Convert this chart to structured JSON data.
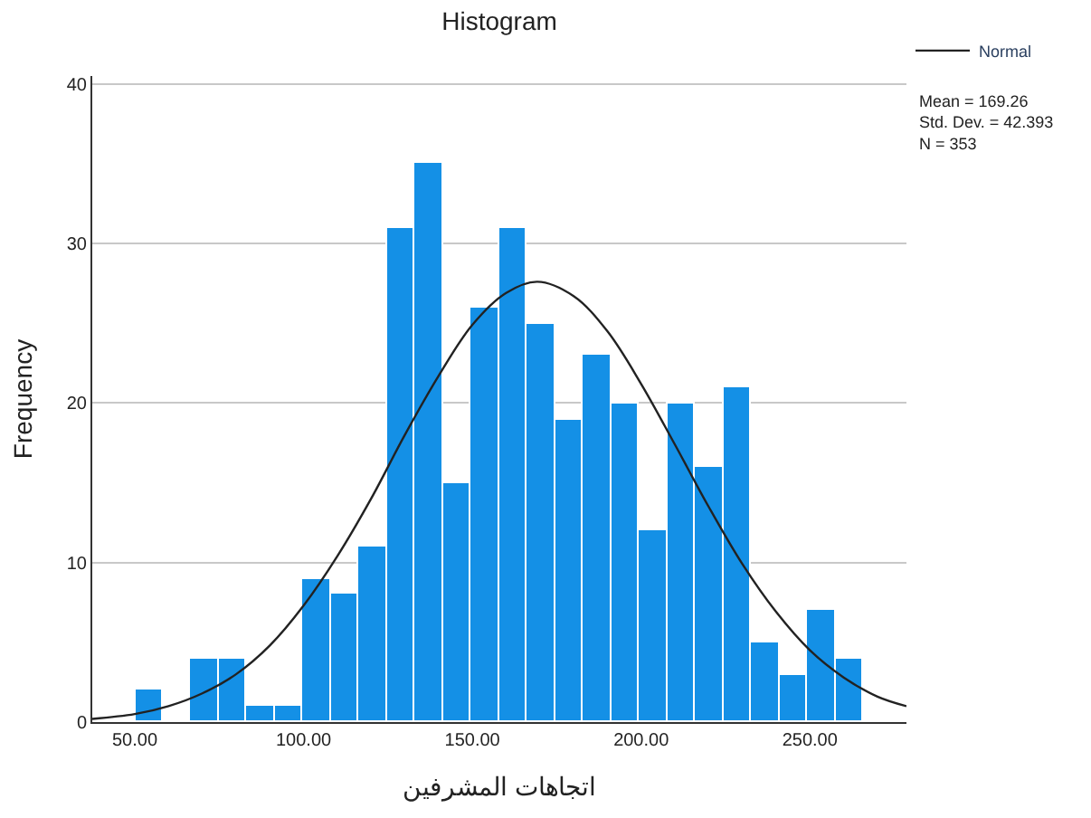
{
  "chart_data": {
    "type": "histogram",
    "title": "Histogram",
    "xlabel": "اتجاهات المشرفين",
    "ylabel": "Frequency",
    "bins": [
      50,
      58.3,
      66.6,
      74.9,
      83.2,
      91.5,
      99.8,
      108.1,
      116.4,
      124.7,
      133,
      141.3,
      149.6,
      157.9,
      166.2,
      174.5,
      182.8,
      191.1,
      199.4,
      207.7,
      216,
      224.3,
      232.6,
      240.9,
      249.2,
      257.5,
      265.8
    ],
    "values": [
      2,
      0,
      4,
      4,
      1,
      1,
      9,
      8,
      11,
      31,
      35,
      15,
      26,
      31,
      25,
      19,
      23,
      20,
      12,
      20,
      16,
      21,
      5,
      3,
      7,
      4
    ],
    "color": "#1490e6",
    "series": [
      {
        "type": "line",
        "name": "Normal",
        "color": "#222222",
        "marker": "none",
        "x": [
          37.4,
          50,
          60,
          70,
          80,
          90,
          100,
          110,
          120,
          130,
          140,
          150,
          160,
          169.26,
          180,
          190,
          200,
          210,
          220,
          230,
          240,
          250,
          260,
          270,
          278.6
        ],
        "values": [
          0.2,
          0.5,
          1.0,
          1.8,
          3.0,
          4.8,
          7.3,
          10.4,
          14.0,
          18.0,
          21.7,
          24.9,
          26.9,
          27.6,
          26.7,
          24.5,
          21.2,
          17.4,
          13.5,
          9.9,
          6.9,
          4.5,
          2.8,
          1.6,
          1.0
        ]
      }
    ],
    "annotations": [
      "Mean = 169.26\nStd. Dev. = 42.393\nN = 353"
    ],
    "xlim": [
      37.4,
      278.6
    ],
    "ylim": [
      0,
      40.5
    ],
    "xticks": [
      {
        "value": 50,
        "label": "50.00"
      },
      {
        "value": 100,
        "label": "100.00"
      },
      {
        "value": 150,
        "label": "150.00"
      },
      {
        "value": 200,
        "label": "200.00"
      },
      {
        "value": 250,
        "label": "250.00"
      }
    ],
    "yticks": [
      0,
      10,
      20,
      30,
      40
    ],
    "grid": "y",
    "legend": "top right"
  }
}
